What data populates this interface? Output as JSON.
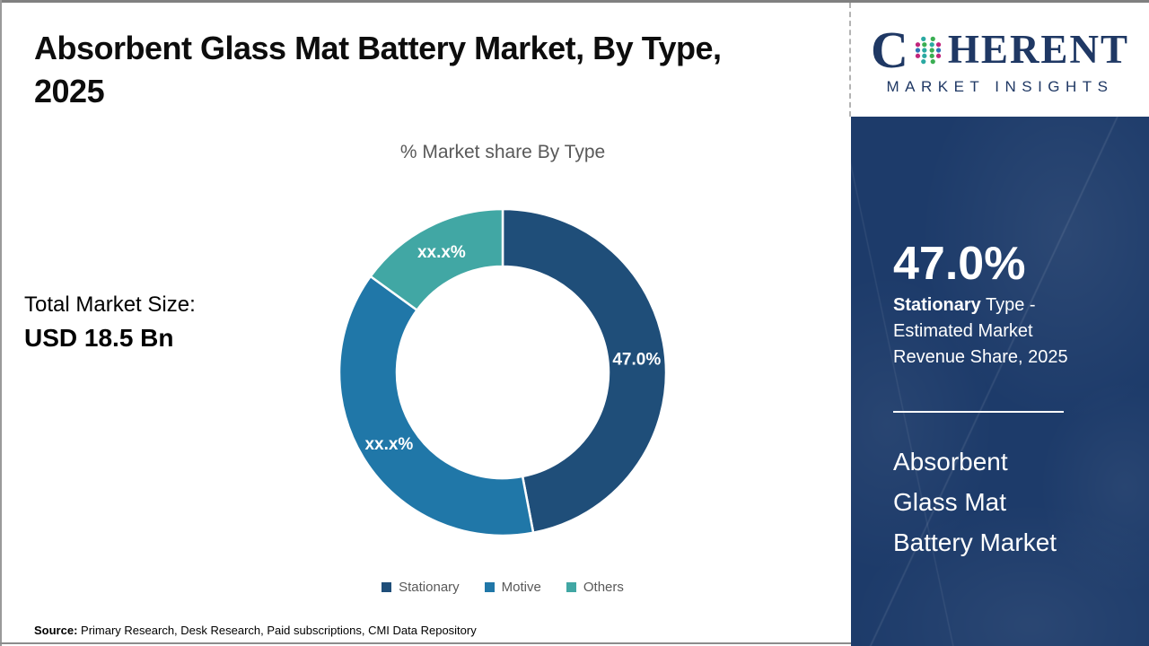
{
  "header": {
    "title_line1": "Absorbent Glass Mat Battery Market, By Type,",
    "title_line2": "2025"
  },
  "logo": {
    "word_start": "C",
    "word_end": "HERENT",
    "subtitle": "MARKET INSIGHTS",
    "brand_color": "#1f3864"
  },
  "main": {
    "chart_title": "% Market share By Type",
    "total_label": "Total Market Size:",
    "total_value": "USD 18.5 Bn",
    "source_label": "Source:",
    "source_text": " Primary Research, Desk Research, Paid subscriptions, CMI Data Repository"
  },
  "chart_data": {
    "type": "pie",
    "subtype": "donut",
    "title": "% Market share By Type",
    "categories": [
      "Stationary",
      "Motive",
      "Others"
    ],
    "values": [
      47.0,
      38.0,
      15.0
    ],
    "labels": [
      "47.0%",
      "xx.x%",
      "xx.x%"
    ],
    "colors": [
      "#1f4e79",
      "#2077a8",
      "#41a7a4"
    ],
    "start_angle_deg": 0,
    "inner_radius_ratio": 0.65,
    "legend_position": "bottom"
  },
  "sidebar": {
    "stat_value": "47.0%",
    "stat_desc_bold": "Stationary",
    "stat_desc_rest": " Type - Estimated Market Revenue Share, 2025",
    "panel_title_lines": [
      "Absorbent",
      "Glass Mat",
      "Battery Market"
    ],
    "panel_bg_color": "#1d3b6a"
  }
}
